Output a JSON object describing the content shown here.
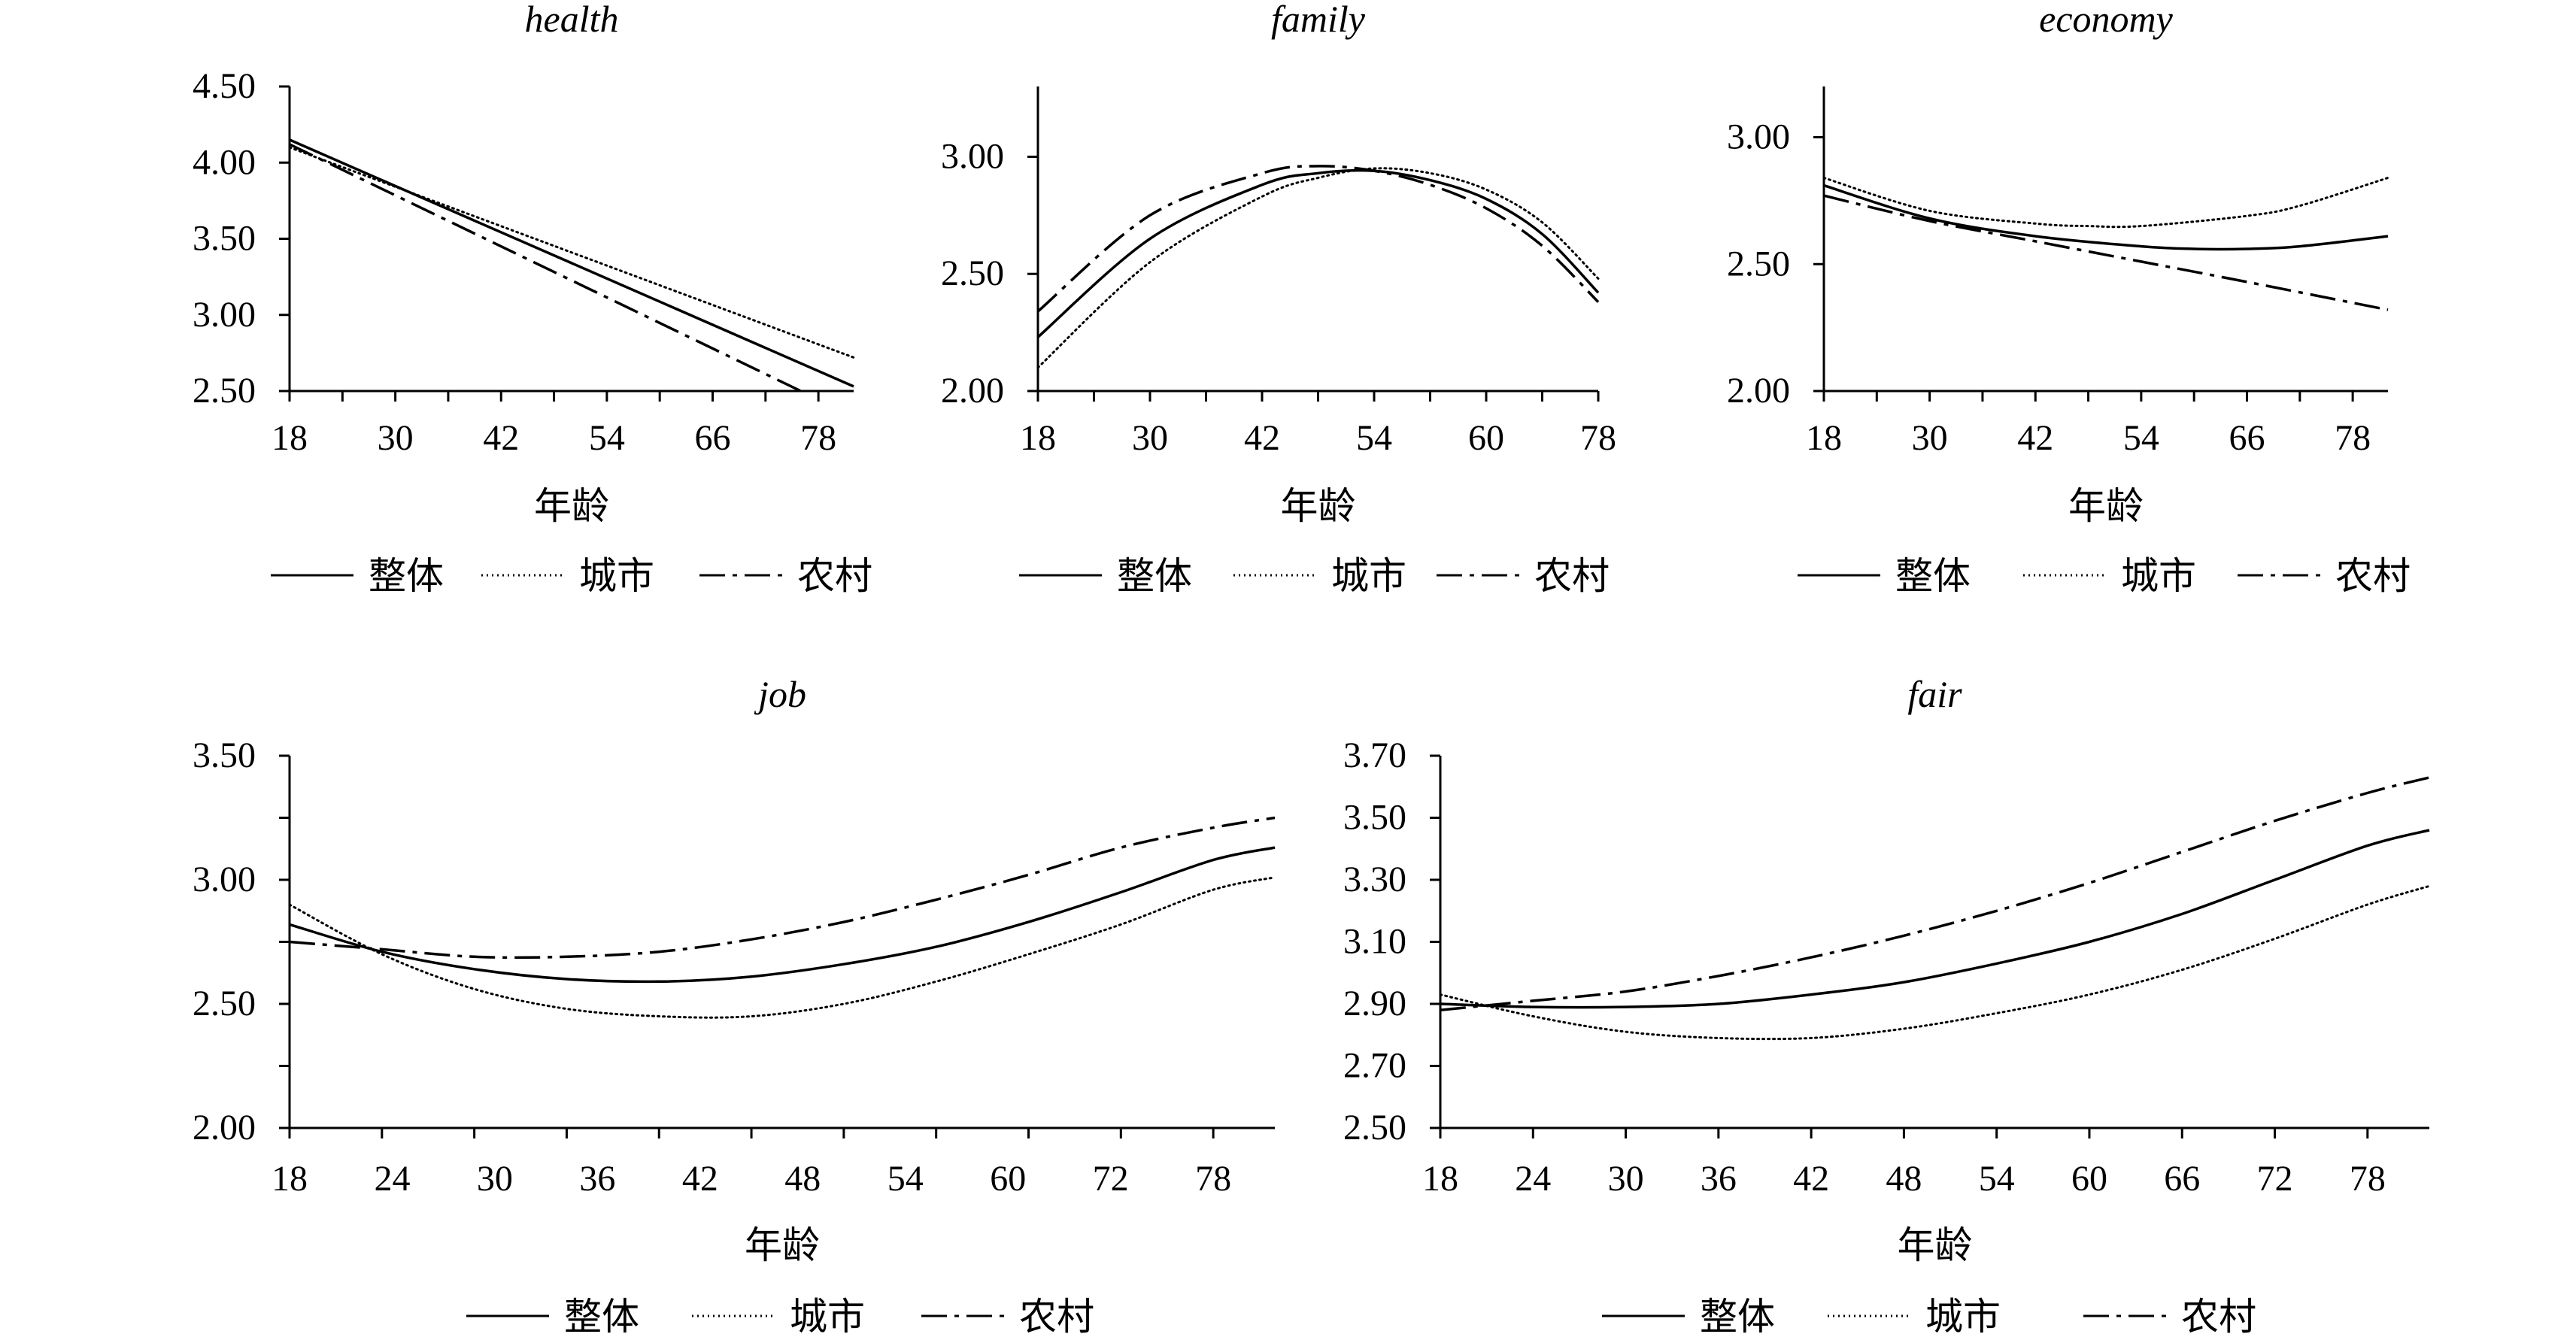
{
  "figure": {
    "legend_labels": [
      "整体",
      "城市",
      "农村"
    ],
    "x_label": "年龄"
  },
  "colors": {
    "line": "#000000",
    "background": "#ffffff"
  },
  "chart_data": [
    {
      "type": "line",
      "title": "health",
      "xlabel": "年龄",
      "ylabel": "",
      "ylim": [
        2.5,
        4.5
      ],
      "xlim": [
        18,
        82
      ],
      "yticks": [
        2.5,
        3.0,
        3.5,
        4.0,
        4.5
      ],
      "ytick_labels": [
        "2.50",
        "3.00",
        "3.50",
        "4.00",
        "4.50"
      ],
      "xticks": [
        18,
        30,
        42,
        54,
        66,
        78
      ],
      "xtick_labels": [
        "18",
        "30",
        "42",
        "54",
        "66",
        "78"
      ],
      "series": [
        {
          "name": "整体",
          "style": "solid",
          "x": [
            18,
            82
          ],
          "y": [
            4.15,
            2.53
          ]
        },
        {
          "name": "城市",
          "style": "dotted",
          "x": [
            18,
            82
          ],
          "y": [
            4.1,
            2.72
          ]
        },
        {
          "name": "农村",
          "style": "dashdot",
          "x": [
            18,
            76
          ],
          "y": [
            4.12,
            2.5
          ]
        }
      ]
    },
    {
      "type": "line",
      "title": "family",
      "xlabel": "年龄",
      "ylabel": "",
      "ylim": [
        2.0,
        3.3
      ],
      "xlim": [
        18,
        78
      ],
      "yticks": [
        2.0,
        2.5,
        3.0
      ],
      "ytick_labels": [
        "2.00",
        "2.50",
        "3.00"
      ],
      "xticks": [
        18,
        30,
        42,
        54,
        60,
        78
      ],
      "xtick_labels": [
        "18",
        "30",
        "42",
        "54",
        "60",
        "78"
      ],
      "series": [
        {
          "name": "整体",
          "style": "solid",
          "x": [
            18,
            30,
            42,
            48,
            54,
            60,
            66,
            72,
            78
          ],
          "y": [
            2.23,
            2.65,
            2.88,
            2.93,
            2.94,
            2.9,
            2.82,
            2.67,
            2.42
          ]
        },
        {
          "name": "城市",
          "style": "dotted",
          "x": [
            18,
            30,
            42,
            48,
            54,
            60,
            66,
            72,
            78
          ],
          "y": [
            2.1,
            2.55,
            2.83,
            2.91,
            2.95,
            2.93,
            2.86,
            2.72,
            2.48
          ]
        },
        {
          "name": "农村",
          "style": "dashdot",
          "x": [
            18,
            30,
            42,
            48,
            54,
            60,
            66,
            72,
            78
          ],
          "y": [
            2.34,
            2.75,
            2.93,
            2.96,
            2.94,
            2.88,
            2.78,
            2.62,
            2.38
          ]
        }
      ]
    },
    {
      "type": "line",
      "title": "economy",
      "xlabel": "年龄",
      "ylabel": "",
      "ylim": [
        2.0,
        3.2
      ],
      "xlim": [
        18,
        82
      ],
      "yticks": [
        2.0,
        2.5,
        3.0
      ],
      "ytick_labels": [
        "2.00",
        "2.50",
        "3.00"
      ],
      "xticks": [
        18,
        30,
        42,
        54,
        66,
        78
      ],
      "xtick_labels": [
        "18",
        "30",
        "42",
        "54",
        "66",
        "78"
      ],
      "series": [
        {
          "name": "整体",
          "style": "solid",
          "x": [
            18,
            30,
            42,
            54,
            60,
            66,
            72,
            82
          ],
          "y": [
            2.81,
            2.68,
            2.61,
            2.57,
            2.56,
            2.56,
            2.57,
            2.61
          ]
        },
        {
          "name": "城市",
          "style": "dotted",
          "x": [
            18,
            30,
            42,
            48,
            54,
            66,
            72,
            82
          ],
          "y": [
            2.84,
            2.71,
            2.66,
            2.65,
            2.65,
            2.69,
            2.73,
            2.84
          ]
        },
        {
          "name": "农村",
          "style": "dashdot",
          "x": [
            18,
            30,
            42,
            54,
            66,
            82
          ],
          "y": [
            2.77,
            2.67,
            2.59,
            2.51,
            2.43,
            2.32
          ]
        }
      ]
    },
    {
      "type": "line",
      "title": "job",
      "xlabel": "年龄",
      "ylabel": "",
      "ylim": [
        2.0,
        3.5
      ],
      "xlim": [
        18,
        82
      ],
      "yticks": [
        2.0,
        2.25,
        2.5,
        2.75,
        3.0,
        3.25,
        3.5
      ],
      "ytick_labels": [
        "2.00",
        "",
        "2.50",
        "",
        "3.00",
        "",
        "3.50"
      ],
      "xticks": [
        18,
        24,
        30,
        36,
        42,
        48,
        54,
        60,
        72,
        78
      ],
      "xtick_labels": [
        "18",
        "24",
        "30",
        "36",
        "42",
        "48",
        "54",
        "60",
        "72",
        "78"
      ],
      "series": [
        {
          "name": "整体",
          "style": "solid",
          "x": [
            18,
            24,
            30,
            36,
            42,
            48,
            54,
            60,
            66,
            72,
            78,
            82
          ],
          "y": [
            2.82,
            2.71,
            2.64,
            2.6,
            2.59,
            2.61,
            2.66,
            2.73,
            2.83,
            2.95,
            3.08,
            3.13
          ]
        },
        {
          "name": "城市",
          "style": "dotted",
          "x": [
            18,
            24,
            30,
            36,
            42,
            48,
            54,
            60,
            66,
            72,
            78,
            82
          ],
          "y": [
            2.9,
            2.7,
            2.56,
            2.48,
            2.45,
            2.45,
            2.5,
            2.59,
            2.7,
            2.82,
            2.96,
            3.01
          ]
        },
        {
          "name": "农村",
          "style": "dashdot",
          "x": [
            18,
            24,
            30,
            36,
            42,
            48,
            54,
            60,
            66,
            72,
            78,
            82
          ],
          "y": [
            2.75,
            2.72,
            2.69,
            2.69,
            2.71,
            2.76,
            2.83,
            2.92,
            3.02,
            3.13,
            3.21,
            3.25
          ]
        }
      ]
    },
    {
      "type": "line",
      "title": "fair",
      "xlabel": "年龄",
      "ylabel": "",
      "ylim": [
        2.5,
        3.7
      ],
      "xlim": [
        18,
        82
      ],
      "yticks": [
        2.5,
        2.7,
        2.9,
        3.1,
        3.3,
        3.5,
        3.7
      ],
      "ytick_labels": [
        "2.50",
        "2.70",
        "2.90",
        "3.10",
        "3.30",
        "3.50",
        "3.70"
      ],
      "xticks": [
        18,
        24,
        30,
        36,
        42,
        48,
        54,
        60,
        66,
        72,
        78
      ],
      "xtick_labels": [
        "18",
        "24",
        "30",
        "36",
        "42",
        "48",
        "54",
        "60",
        "66",
        "72",
        "78"
      ],
      "series": [
        {
          "name": "整体",
          "style": "solid",
          "x": [
            18,
            24,
            30,
            36,
            42,
            48,
            54,
            60,
            66,
            72,
            78,
            82
          ],
          "y": [
            2.9,
            2.89,
            2.89,
            2.9,
            2.93,
            2.97,
            3.03,
            3.1,
            3.19,
            3.3,
            3.41,
            3.46
          ]
        },
        {
          "name": "城市",
          "style": "dotted",
          "x": [
            18,
            24,
            30,
            36,
            42,
            48,
            54,
            60,
            66,
            72,
            78,
            82
          ],
          "y": [
            2.93,
            2.86,
            2.81,
            2.79,
            2.79,
            2.82,
            2.87,
            2.93,
            3.01,
            3.11,
            3.22,
            3.28
          ]
        },
        {
          "name": "农村",
          "style": "dashdot",
          "x": [
            18,
            24,
            30,
            36,
            42,
            48,
            54,
            60,
            66,
            72,
            78,
            82
          ],
          "y": [
            2.88,
            2.91,
            2.94,
            2.99,
            3.05,
            3.12,
            3.2,
            3.29,
            3.39,
            3.49,
            3.58,
            3.63
          ]
        }
      ]
    }
  ]
}
